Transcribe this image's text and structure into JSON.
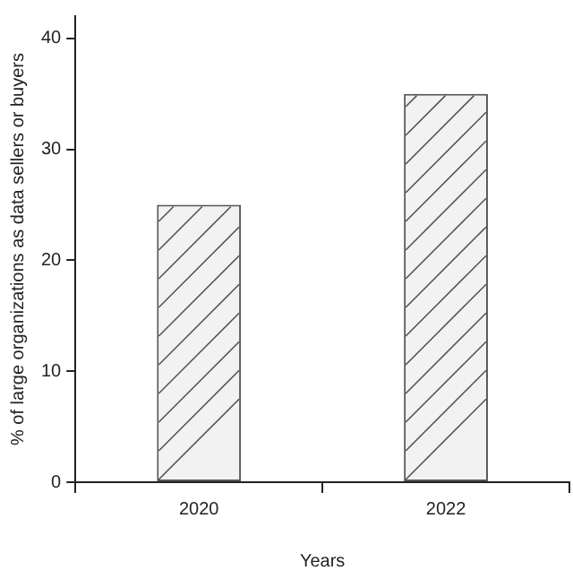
{
  "chart_data": {
    "type": "bar",
    "xlabel": "Years",
    "ylabel": "% of large organizations as data sellers or buyers",
    "categories": [
      "2020",
      "2022"
    ],
    "values": [
      25,
      35
    ],
    "color": "#f2f2f2",
    "ylim": [
      0,
      42
    ],
    "yticks": [
      0,
      10,
      20,
      30,
      40
    ],
    "grid": false,
    "legend": false
  }
}
